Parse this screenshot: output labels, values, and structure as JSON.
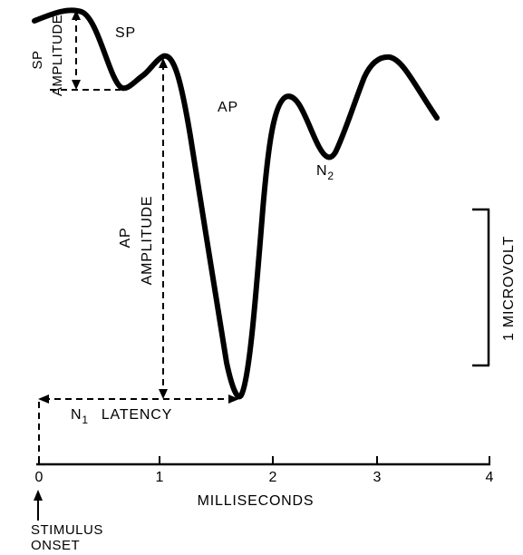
{
  "labels": {
    "sp": "SP",
    "sp_amplitude_line1": "SP",
    "sp_amplitude_line2": "AMPLITUDE",
    "ap": "AP",
    "ap_amplitude_line1": "AP",
    "ap_amplitude_line2": "AMPLITUDE",
    "n2_letter": "N",
    "n2_sub": "2",
    "n1_letter": "N",
    "n1_sub": "1",
    "latency": "LATENCY",
    "scale_bar": "1 MICROVOLT",
    "x_axis": "MILLISECONDS",
    "stimulus_line1": "STIMULUS",
    "stimulus_line2": "ONSET"
  },
  "x_ticks": [
    "0",
    "1",
    "2",
    "3",
    "4"
  ]
}
